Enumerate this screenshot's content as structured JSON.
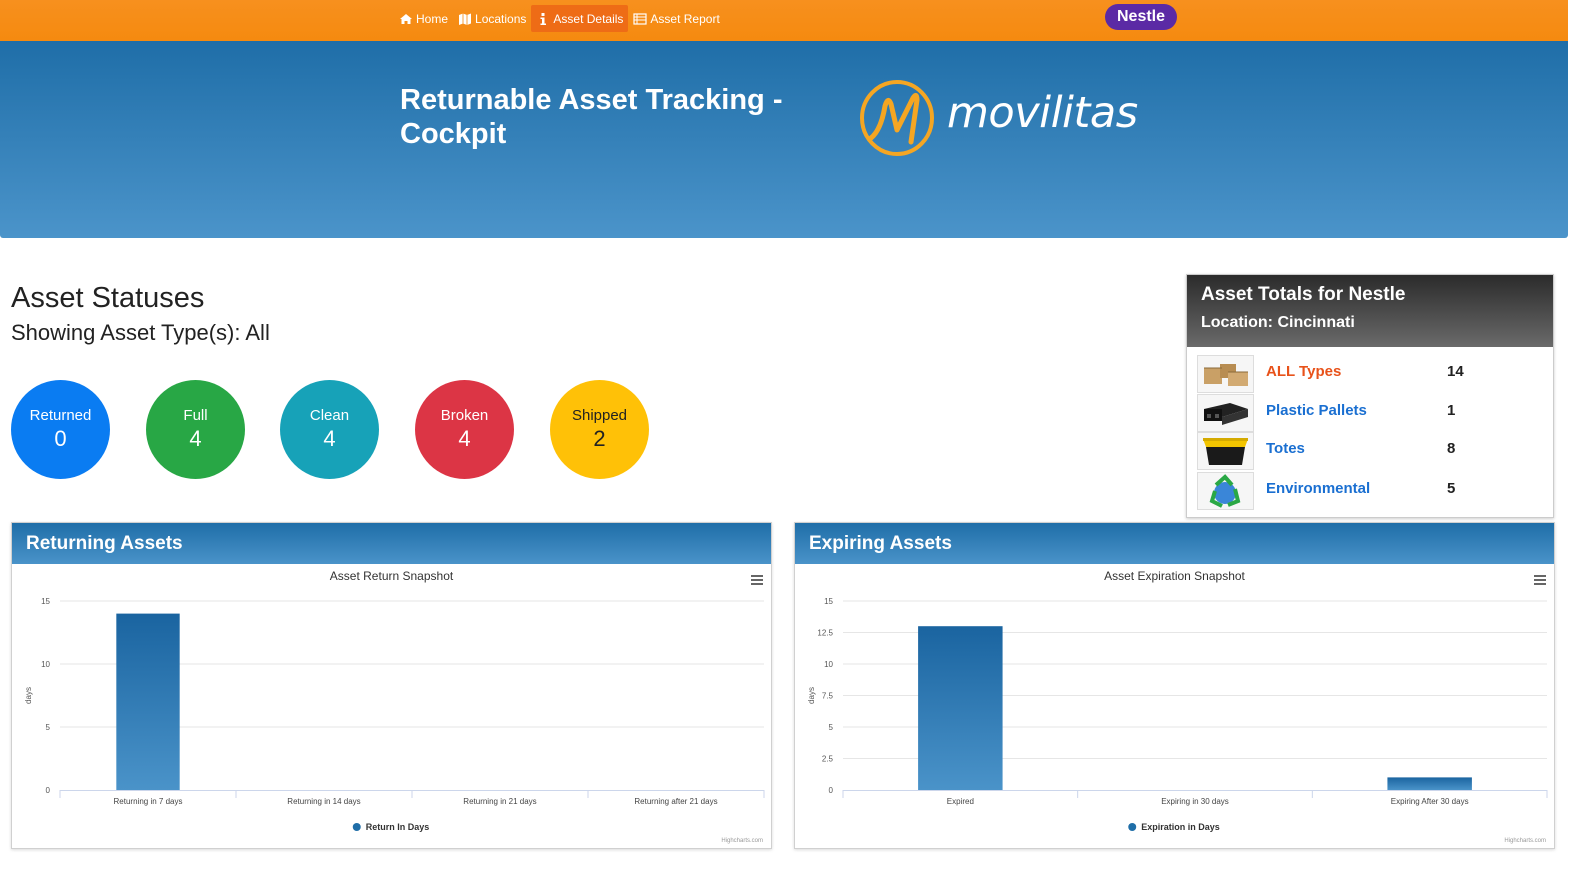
{
  "nav": {
    "items": [
      {
        "label": "Home",
        "icon": "home-icon",
        "active": false
      },
      {
        "label": "Locations",
        "icon": "map-icon",
        "active": false
      },
      {
        "label": "Asset Details",
        "icon": "info-icon",
        "active": true
      },
      {
        "label": "Asset Report",
        "icon": "list-icon",
        "active": false
      }
    ],
    "customer": "Nestle"
  },
  "hero": {
    "title": "Returnable Asset Tracking - Cockpit",
    "logo_text": "movilitas"
  },
  "statuses": {
    "heading": "Asset Statuses",
    "subheading": "Showing Asset Type(s): All",
    "items": [
      {
        "label": "Returned",
        "value": "0",
        "color": "#0a7cf2",
        "text_color": "#ffffff"
      },
      {
        "label": "Full",
        "value": "4",
        "color": "#28a745",
        "text_color": "#ffffff"
      },
      {
        "label": "Clean",
        "value": "4",
        "color": "#17a2b8",
        "text_color": "#ffffff"
      },
      {
        "label": "Broken",
        "value": "4",
        "color": "#dc3545",
        "text_color": "#ffffff"
      },
      {
        "label": "Shipped",
        "value": "2",
        "color": "#ffc107",
        "text_color": "#222222"
      }
    ]
  },
  "totals": {
    "title": "Asset Totals for Nestle",
    "location": "Location: Cincinnati",
    "rows": [
      {
        "label": "ALL Types",
        "count": "14",
        "icon": "boxes-icon"
      },
      {
        "label": "Plastic Pallets",
        "count": "1",
        "icon": "pallet-icon"
      },
      {
        "label": "Totes",
        "count": "8",
        "icon": "tote-icon"
      },
      {
        "label": "Environmental",
        "count": "5",
        "icon": "recycle-icon"
      }
    ]
  },
  "returning": {
    "card_title": "Returning Assets",
    "credit": "Highcharts.com"
  },
  "expiring": {
    "card_title": "Expiring Assets",
    "credit": "Highcharts.com"
  },
  "chart_data": [
    {
      "type": "bar",
      "title": "Asset Return Snapshot",
      "xlabel": "",
      "ylabel": "days",
      "categories": [
        "Returning in 7 days",
        "Returning in 14 days",
        "Returning in 21 days",
        "Returning after 21 days"
      ],
      "series": [
        {
          "name": "Return In Days",
          "values": [
            14,
            0,
            0,
            0
          ]
        }
      ],
      "ylim": [
        0,
        15
      ],
      "yticks": [
        "0",
        "5",
        "10",
        "15"
      ],
      "grid": true,
      "legend": "bottom-center",
      "color": "#1f6ea8"
    },
    {
      "type": "bar",
      "title": "Asset Expiration Snapshot",
      "xlabel": "",
      "ylabel": "days",
      "categories": [
        "Expired",
        "Expiring in 30 days",
        "Expiring After 30 days"
      ],
      "series": [
        {
          "name": "Expiration in Days",
          "values": [
            13,
            0,
            1
          ]
        }
      ],
      "ylim": [
        0,
        15
      ],
      "yticks": [
        "0",
        "2.5",
        "5",
        "7.5",
        "10",
        "12.5",
        "15"
      ],
      "grid": true,
      "legend": "bottom-center",
      "color": "#1f6ea8"
    }
  ]
}
